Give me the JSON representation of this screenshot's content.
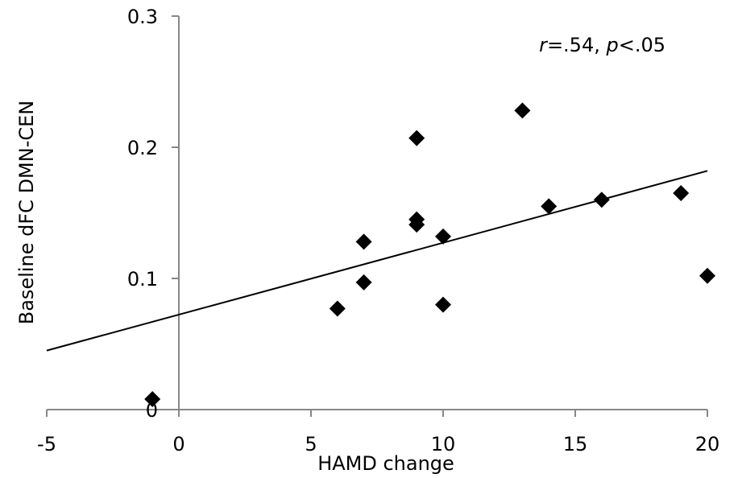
{
  "chart_data": {
    "type": "scatter",
    "title": "",
    "xlabel": "HAMD change",
    "ylabel": "Baseline dFC DMN-CEN",
    "xlim": [
      -5,
      20
    ],
    "ylim": [
      0,
      0.3
    ],
    "xticks": [
      -5,
      0,
      5,
      10,
      15,
      20
    ],
    "xtick_labels": [
      "-5",
      "0",
      "5",
      "10",
      "15",
      "20"
    ],
    "yticks": [
      0,
      0.1,
      0.2,
      0.3
    ],
    "ytick_labels": [
      "0",
      "0.1",
      "0.2",
      "0.3"
    ],
    "grid": false,
    "legend": "none",
    "marker": "diamond",
    "marker_color": "#000000",
    "points": [
      {
        "x": -1,
        "y": 0.008
      },
      {
        "x": 6,
        "y": 0.077
      },
      {
        "x": 7,
        "y": 0.097
      },
      {
        "x": 7,
        "y": 0.128
      },
      {
        "x": 9,
        "y": 0.207
      },
      {
        "x": 9,
        "y": 0.145
      },
      {
        "x": 9,
        "y": 0.141
      },
      {
        "x": 10,
        "y": 0.08
      },
      {
        "x": 10,
        "y": 0.132
      },
      {
        "x": 13,
        "y": 0.228
      },
      {
        "x": 14,
        "y": 0.155
      },
      {
        "x": 16,
        "y": 0.16
      },
      {
        "x": 19,
        "y": 0.165
      },
      {
        "x": 20,
        "y": 0.102
      }
    ],
    "trendline": {
      "x": [
        -5,
        20
      ],
      "y": [
        0.045,
        0.182
      ]
    },
    "annotation": {
      "r_symbol": "r",
      "r_text": "=.54, ",
      "p_symbol": "p",
      "p_text": "<.05"
    }
  }
}
